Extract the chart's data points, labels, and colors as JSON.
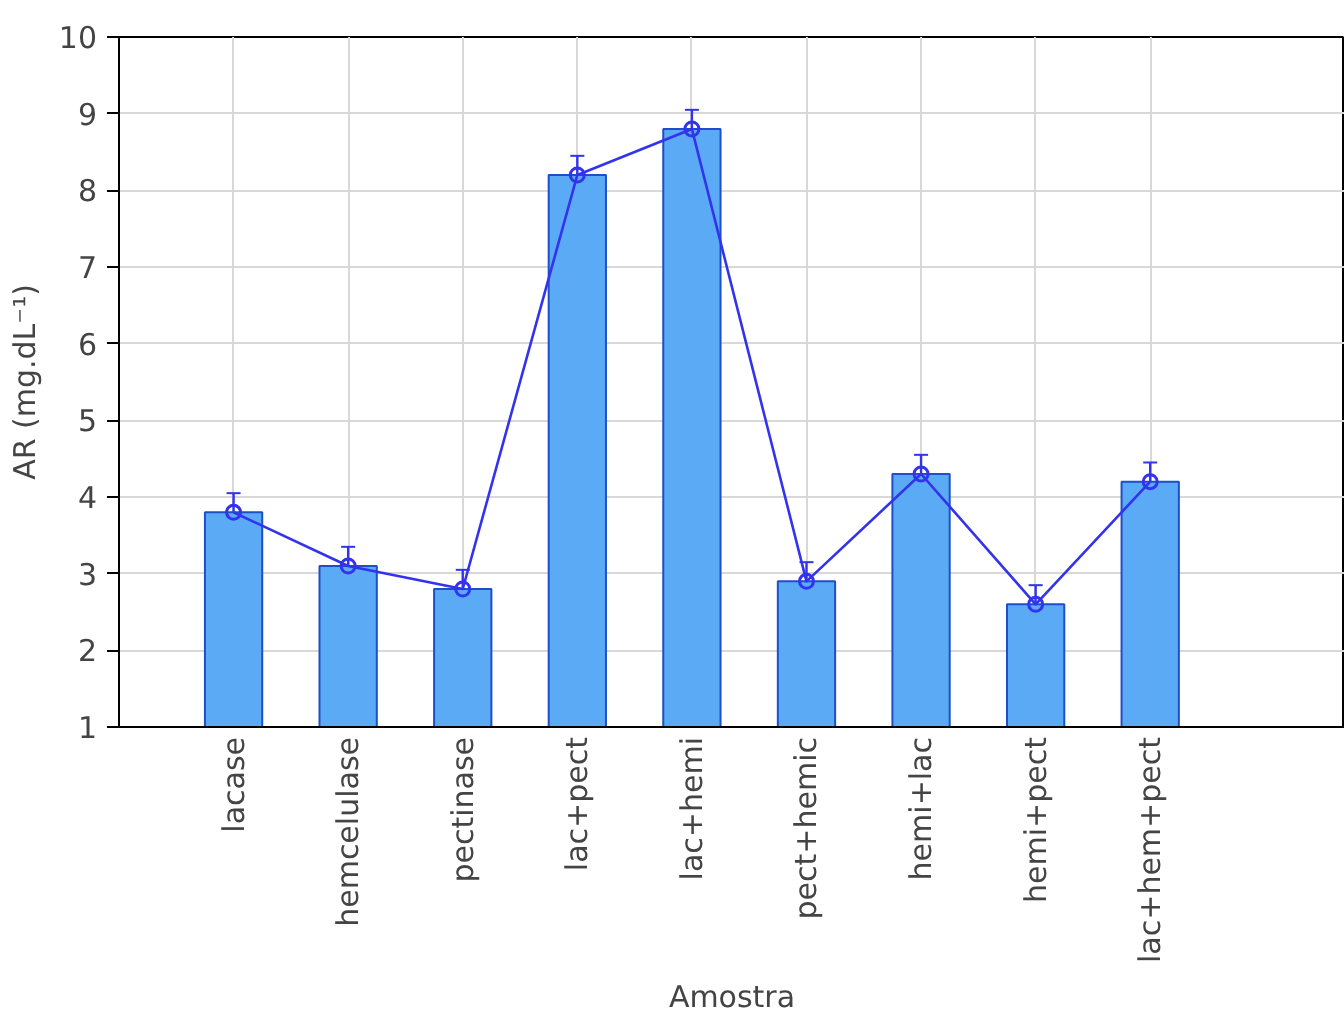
{
  "chart_data": {
    "type": "bar",
    "xlabel": "Amostra",
    "ylabel": "AR (mg.dL⁻¹)",
    "categories": [
      "lacase",
      "hemcelulase",
      "pectinase",
      "lac+pect",
      "lac+hemi",
      "pect+hemic",
      "hemi+lac",
      "hemi+pect",
      "lac+hem+pect"
    ],
    "series": [
      {
        "color": "#5aaaf5",
        "values": [
          3.8,
          3.1,
          2.8,
          8.2,
          8.8,
          2.9,
          4.3,
          2.6,
          4.2
        ]
      },
      {
        "type": "line",
        "color": "#3333ee",
        "marker": "circle",
        "values": [
          3.8,
          3.1,
          2.8,
          8.2,
          8.8,
          2.9,
          4.3,
          2.6,
          4.2
        ],
        "errors": [
          0.25,
          0.25,
          0.25,
          0.25,
          0.25,
          0.25,
          0.25,
          0.25,
          0.25
        ]
      }
    ],
    "ylim": [
      1,
      10
    ],
    "yticks": [
      1,
      2,
      3,
      4,
      5,
      6,
      7,
      8,
      9,
      10
    ],
    "grid": true
  }
}
